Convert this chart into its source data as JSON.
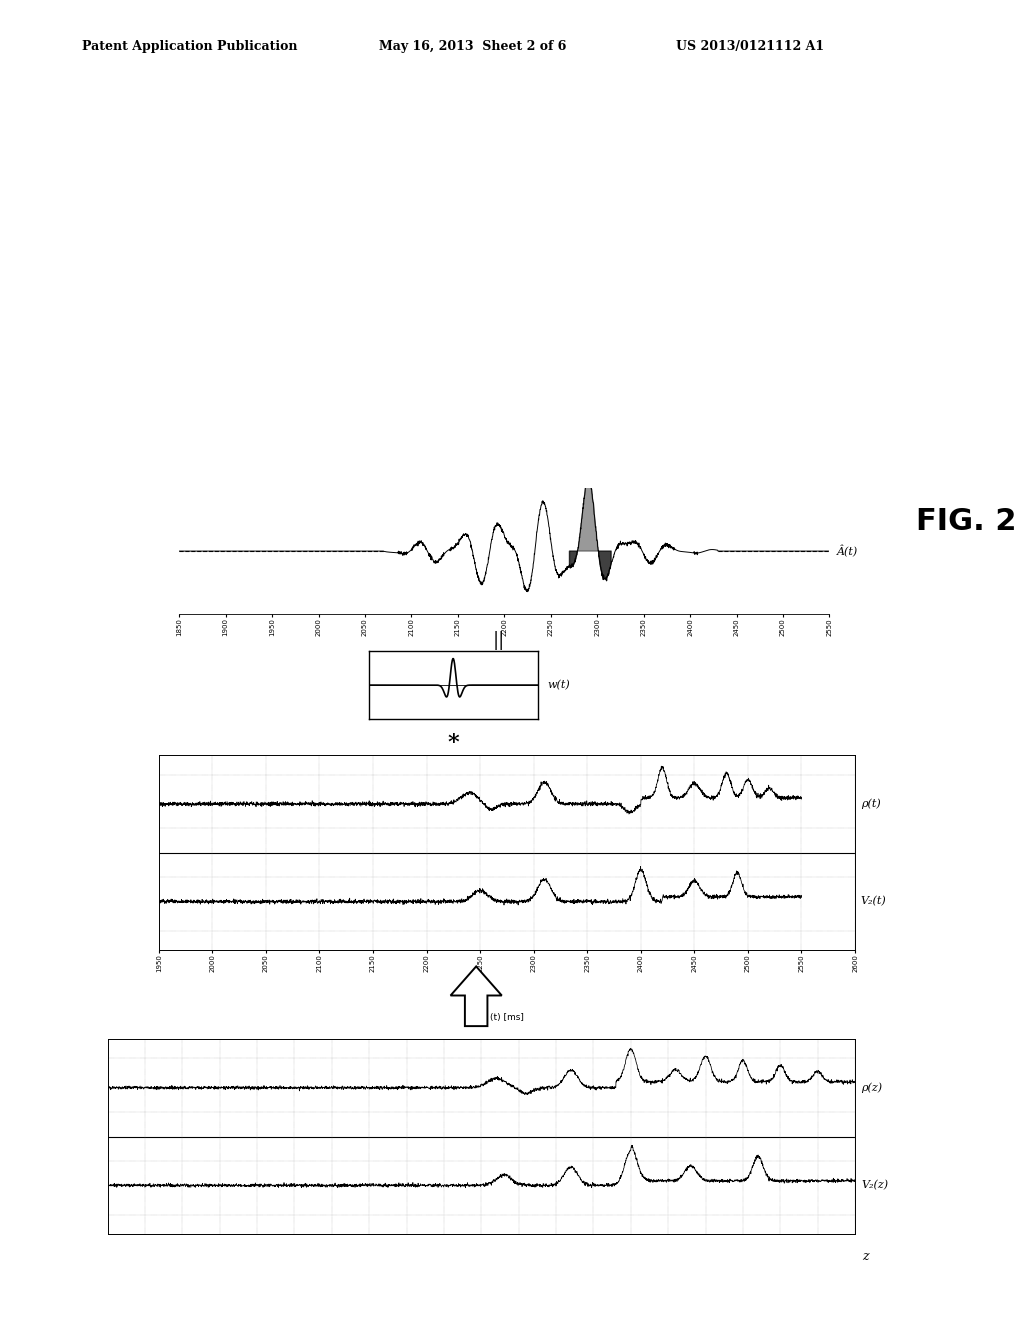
{
  "title_left": "Patent Application Publication",
  "title_center": "May 16, 2013  Sheet 2 of 6",
  "title_right": "US 2013/0121112 A1",
  "fig_label": "FIG. 2",
  "background_color": "#ffffff",
  "seismic_label": "Â(t)",
  "wavelet_label": "w(t)",
  "rho_t_label": "ρ(t)",
  "vp_t_label": "V₂(t)",
  "rho_z_label": "ρ(z)",
  "vp_z_label": "V₂(z)",
  "z_label": "z",
  "t_label": "(t) [ms]",
  "equals_symbol": "||",
  "asterisk_symbol": "*"
}
